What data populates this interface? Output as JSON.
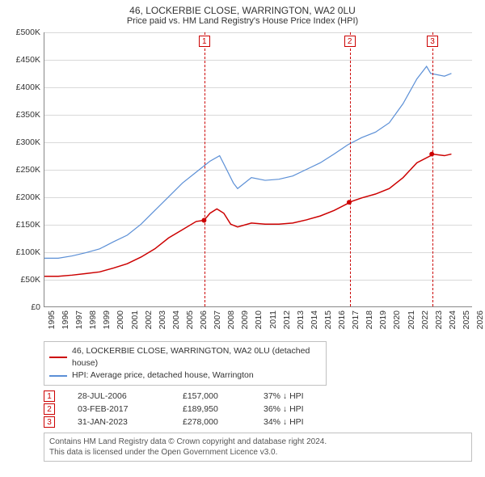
{
  "header": {
    "title": "46, LOCKERBIE CLOSE, WARRINGTON, WA2 0LU",
    "subtitle": "Price paid vs. HM Land Registry's House Price Index (HPI)"
  },
  "chart": {
    "type": "line",
    "background_color": "#ffffff",
    "grid_color": "#d9d9d9",
    "axis_color": "#888888",
    "fonts": {
      "tick_size": 10.5,
      "title_size": 12
    },
    "x": {
      "min": 1995,
      "max": 2026,
      "tick_step": 1,
      "labels": [
        "1995",
        "1996",
        "1997",
        "1998",
        "1999",
        "2000",
        "2001",
        "2002",
        "2003",
        "2004",
        "2005",
        "2006",
        "2007",
        "2008",
        "2009",
        "2010",
        "2011",
        "2012",
        "2013",
        "2014",
        "2015",
        "2016",
        "2017",
        "2018",
        "2019",
        "2020",
        "2021",
        "2022",
        "2023",
        "2024",
        "2025",
        "2026"
      ]
    },
    "y": {
      "min": 0,
      "max": 500000,
      "tick_step": 50000,
      "labels": [
        "£0",
        "£50K",
        "£100K",
        "£150K",
        "£200K",
        "£250K",
        "£300K",
        "£350K",
        "£400K",
        "£450K",
        "£500K"
      ]
    },
    "series": [
      {
        "id": "price_paid",
        "label": "46, LOCKERBIE CLOSE, WARRINGTON, WA2 0LU (detached house)",
        "color": "#cc0000",
        "line_width": 1.5,
        "points": [
          [
            1995,
            55000
          ],
          [
            1996,
            55000
          ],
          [
            1997,
            57000
          ],
          [
            1998,
            60000
          ],
          [
            1999,
            63000
          ],
          [
            2000,
            70000
          ],
          [
            2001,
            78000
          ],
          [
            2002,
            90000
          ],
          [
            2003,
            105000
          ],
          [
            2004,
            125000
          ],
          [
            2005,
            140000
          ],
          [
            2006,
            155000
          ],
          [
            2006.57,
            157000
          ],
          [
            2007,
            170000
          ],
          [
            2007.5,
            178000
          ],
          [
            2008,
            170000
          ],
          [
            2008.5,
            150000
          ],
          [
            2009,
            145000
          ],
          [
            2010,
            152000
          ],
          [
            2011,
            150000
          ],
          [
            2012,
            150000
          ],
          [
            2013,
            152000
          ],
          [
            2014,
            158000
          ],
          [
            2015,
            165000
          ],
          [
            2016,
            175000
          ],
          [
            2017,
            188000
          ],
          [
            2017.09,
            189950
          ],
          [
            2018,
            198000
          ],
          [
            2019,
            205000
          ],
          [
            2020,
            215000
          ],
          [
            2021,
            235000
          ],
          [
            2022,
            262000
          ],
          [
            2023,
            275000
          ],
          [
            2023.08,
            278000
          ],
          [
            2024,
            275000
          ],
          [
            2024.5,
            278000
          ]
        ]
      },
      {
        "id": "hpi",
        "label": "HPI: Average price, detached house, Warrington",
        "color": "#5b8fd6",
        "line_width": 1.2,
        "points": [
          [
            1995,
            88000
          ],
          [
            1996,
            88000
          ],
          [
            1997,
            92000
          ],
          [
            1998,
            98000
          ],
          [
            1999,
            105000
          ],
          [
            2000,
            118000
          ],
          [
            2001,
            130000
          ],
          [
            2002,
            150000
          ],
          [
            2003,
            175000
          ],
          [
            2004,
            200000
          ],
          [
            2005,
            225000
          ],
          [
            2006,
            245000
          ],
          [
            2007,
            265000
          ],
          [
            2007.7,
            275000
          ],
          [
            2008,
            260000
          ],
          [
            2008.7,
            225000
          ],
          [
            2009,
            215000
          ],
          [
            2010,
            235000
          ],
          [
            2011,
            230000
          ],
          [
            2012,
            232000
          ],
          [
            2013,
            238000
          ],
          [
            2014,
            250000
          ],
          [
            2015,
            262000
          ],
          [
            2016,
            278000
          ],
          [
            2017,
            295000
          ],
          [
            2018,
            308000
          ],
          [
            2019,
            318000
          ],
          [
            2020,
            335000
          ],
          [
            2021,
            370000
          ],
          [
            2022,
            415000
          ],
          [
            2022.7,
            438000
          ],
          [
            2023,
            425000
          ],
          [
            2024,
            420000
          ],
          [
            2024.5,
            425000
          ]
        ]
      }
    ],
    "markers": [
      {
        "n": "1",
        "x": 2006.57,
        "y": 157000
      },
      {
        "n": "2",
        "x": 2017.09,
        "y": 189950
      },
      {
        "n": "3",
        "x": 2023.08,
        "y": 278000
      }
    ],
    "sale_points": {
      "color": "#cc0000",
      "radius": 3
    }
  },
  "legend": {
    "series1_label": "46, LOCKERBIE CLOSE, WARRINGTON, WA2 0LU (detached house)",
    "series2_label": "HPI: Average price, detached house, Warrington",
    "series1_color": "#cc0000",
    "series2_color": "#5b8fd6"
  },
  "sales": [
    {
      "n": "1",
      "date": "28-JUL-2006",
      "price": "£157,000",
      "diff": "37% ↓ HPI"
    },
    {
      "n": "2",
      "date": "03-FEB-2017",
      "price": "£189,950",
      "diff": "36% ↓ HPI"
    },
    {
      "n": "3",
      "date": "31-JAN-2023",
      "price": "£278,000",
      "diff": "34% ↓ HPI"
    }
  ],
  "attribution": {
    "line1": "Contains HM Land Registry data © Crown copyright and database right 2024.",
    "line2": "This data is licensed under the Open Government Licence v3.0."
  }
}
